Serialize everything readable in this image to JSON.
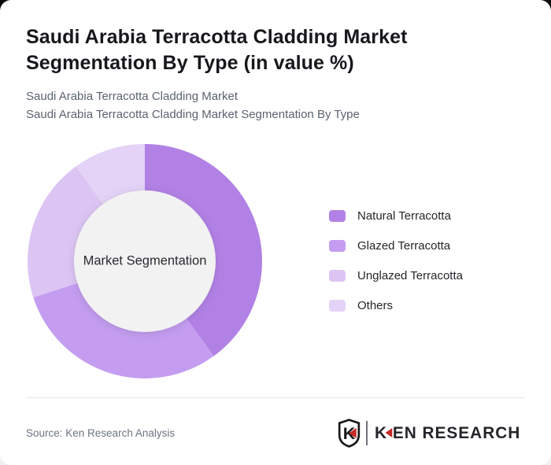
{
  "title": "Saudi Arabia Terracotta Cladding Market Segmentation By Type (in value %)",
  "subtitles": [
    "Saudi Arabia Terracotta Cladding Market",
    "Saudi Arabia Terracotta Cladding Market Segmentation By Type"
  ],
  "chart_data": {
    "type": "pie",
    "variant": "donut",
    "title": "Saudi Arabia Terracotta Cladding Market Segmentation By Type (in value %)",
    "center_label": "Market Segmentation",
    "categories": [
      "Natural Terracotta",
      "Glazed Terracotta",
      "Unglazed Terracotta",
      "Others"
    ],
    "values": [
      40,
      30,
      20,
      10
    ],
    "unit": "value %",
    "colors": [
      "#b281e5",
      "#c49df0",
      "#dcc5f3",
      "#e4d3f7"
    ],
    "hole_color": "#f2f2f2",
    "start_angle_deg": 0,
    "direction": "clockwise",
    "inner_radius_ratio": 0.6,
    "legend_position": "right",
    "grid": false
  },
  "footer": {
    "source": "Source: Ken Research Analysis",
    "logo": {
      "shield_letter": "K",
      "name_first_letter": "K",
      "name_rest": "EN RESEARCH",
      "accent_color": "#c62828"
    }
  }
}
